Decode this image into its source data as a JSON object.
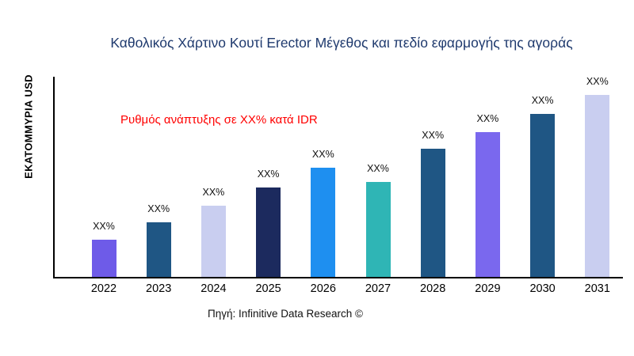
{
  "page": {
    "source_note": "Πηγή: Infinitive Data Research ©"
  },
  "chart_data": {
    "type": "bar",
    "title": "Καθολικός Χάρτινο Κουτί Erector Μέγεθος και πεδίο εφαρμογής της αγοράς",
    "ylabel": "ΕΚΑΤΟΜΜΥΡΙΑ USD",
    "xlabel": "",
    "annotation": "Ρυθμός ανάπτυξης σε XX% κατά IDR",
    "annotation_color": "#FF0000",
    "title_color": "#1F3A6E",
    "categories": [
      "2022",
      "2023",
      "2024",
      "2025",
      "2026",
      "2027",
      "2028",
      "2029",
      "2030",
      "2031"
    ],
    "bar_labels": [
      "XX%",
      "XX%",
      "XX%",
      "XX%",
      "XX%",
      "XX%",
      "XX%",
      "XX%",
      "XX%",
      "XX%"
    ],
    "values": [
      47,
      69,
      90,
      113,
      138,
      120,
      162,
      183,
      206,
      230
    ],
    "values_unit": "relative bar height (actual values masked as XX% in chart)",
    "bar_colors": [
      "#6E5BE8",
      "#1F5684",
      "#C9CEF0",
      "#1C2A5E",
      "#1E8FF0",
      "#2FB5B5",
      "#1F5684",
      "#7A68EE",
      "#1F5684",
      "#C9CEF0"
    ],
    "grid": false,
    "legend": null
  }
}
